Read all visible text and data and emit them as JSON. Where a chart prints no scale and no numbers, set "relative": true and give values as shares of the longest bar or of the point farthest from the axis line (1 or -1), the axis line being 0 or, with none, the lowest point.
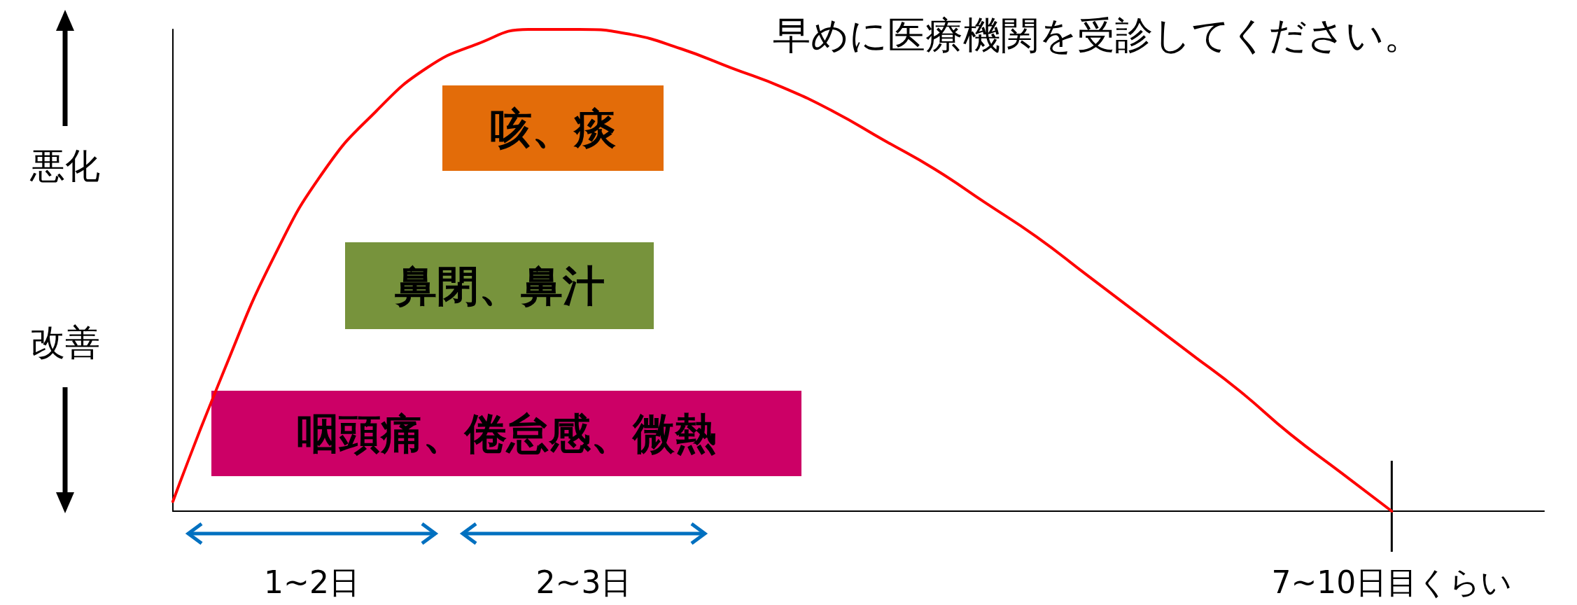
{
  "chart_data": {
    "type": "line",
    "relative": true,
    "title": "早めに医療機関を受診してください。",
    "categories": [
      null,
      null,
      null,
      null,
      null,
      null,
      null,
      null,
      null,
      null,
      null,
      null,
      null,
      null,
      null,
      null,
      null,
      null,
      null,
      null,
      null,
      null,
      null,
      null,
      null,
      null,
      null,
      null
    ],
    "series": [
      {
        "color": "#ff0000",
        "values": [
          0.02,
          0.29,
          0.53,
          0.71,
          0.83,
          0.92,
          0.97,
          1.0,
          1.0,
          0.99,
          0.96,
          0.92,
          0.88,
          0.83,
          0.77,
          0.71,
          0.64,
          0.57,
          0.49,
          0.41,
          0.33,
          0.25,
          0.16,
          0.08,
          0,
          null,
          null,
          null
        ]
      }
    ],
    "annotations": [
      "悪化",
      "改善",
      "咳、痰",
      "鼻閉、鼻汁",
      "咽頭痛、倦怠感、微熱",
      "1~2日",
      "2~3日",
      "7~10日目くらい"
    ],
    "marker": "none",
    "line_style": "solid"
  }
}
